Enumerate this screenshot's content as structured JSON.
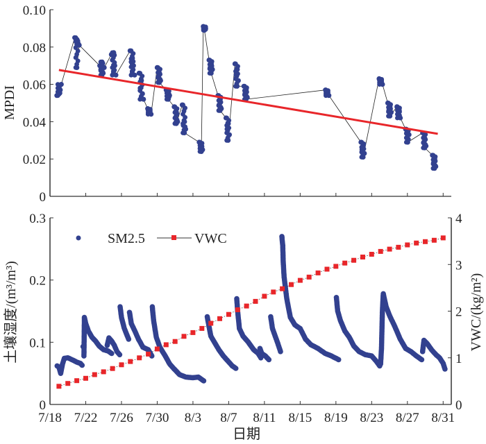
{
  "colors": {
    "points": "#32418f",
    "trend": "#e8262a",
    "vwc": "#e8262a",
    "axis": "#333333",
    "connector": "#222222"
  },
  "chart_data": [
    {
      "name": "mpdi-panel",
      "type": "scatter",
      "title": "",
      "xlabel": "",
      "ylabel": "MPDI",
      "ylim": [
        0,
        0.1
      ],
      "yticks": [
        0,
        0.02,
        0.04,
        0.06,
        0.08,
        0.1
      ],
      "ytick_labels": [
        "0",
        "0.02",
        "0.04",
        "0.06",
        "0.08",
        "0.10"
      ],
      "x_start_date": "7/18",
      "xlim_days": [
        0,
        45
      ],
      "xtick_days": [
        4,
        8,
        12,
        16,
        20,
        24,
        28,
        32,
        36,
        40,
        44
      ],
      "grid": false,
      "series": [
        {
          "name": "MPDI",
          "style": "points-connected",
          "clusters": [
            {
              "day": 1.0,
              "values": [
                0.054,
                0.055,
                0.056,
                0.057,
                0.058,
                0.06
              ]
            },
            {
              "day": 3.0,
              "values": [
                0.085,
                0.084,
                0.083,
                0.082,
                0.069,
                0.081
              ]
            },
            {
              "day": 5.8,
              "values": [
                0.07,
                0.072,
                0.068,
                0.066,
                0.065,
                0.069
              ]
            },
            {
              "day": 7.1,
              "values": [
                0.076,
                0.077,
                0.073,
                0.07,
                0.067,
                0.065
              ]
            },
            {
              "day": 9.2,
              "values": [
                0.078,
                0.074,
                0.072,
                0.07,
                0.067,
                0.065
              ]
            },
            {
              "day": 10.2,
              "values": [
                0.066,
                0.062,
                0.058,
                0.055,
                0.053,
                0.052
              ]
            },
            {
              "day": 11.1,
              "values": [
                0.047,
                0.046,
                0.045,
                0.044
              ]
            },
            {
              "day": 12.2,
              "values": [
                0.069,
                0.066,
                0.064,
                0.062,
                0.061
              ]
            },
            {
              "day": 13.2,
              "values": [
                0.057,
                0.056,
                0.055,
                0.054,
                0.052
              ]
            },
            {
              "day": 14.1,
              "values": [
                0.048,
                0.045,
                0.042,
                0.04,
                0.039
              ]
            },
            {
              "day": 15.0,
              "values": [
                0.049,
                0.04,
                0.038,
                0.036,
                0.034
              ]
            },
            {
              "day": 16.9,
              "values": [
                0.029,
                0.027,
                0.026,
                0.025,
                0.024
              ]
            },
            {
              "day": 17.3,
              "values": [
                0.091,
                0.09,
                0.089
              ]
            },
            {
              "day": 18.0,
              "values": [
                0.073,
                0.071,
                0.069,
                0.068,
                0.066
              ]
            },
            {
              "day": 19.0,
              "values": [
                0.054,
                0.052,
                0.049,
                0.047,
                0.046
              ]
            },
            {
              "day": 19.9,
              "values": [
                0.042,
                0.039,
                0.036,
                0.033,
                0.03
              ]
            },
            {
              "day": 20.9,
              "values": [
                0.071,
                0.068,
                0.065,
                0.062,
                0.059
              ]
            },
            {
              "day": 21.9,
              "values": [
                0.059,
                0.057,
                0.055,
                0.053,
                0.052
              ]
            },
            {
              "day": 31.0,
              "values": [
                0.057,
                0.056,
                0.055,
                0.054
              ]
            },
            {
              "day": 35.0,
              "values": [
                0.029,
                0.027,
                0.025,
                0.023,
                0.021
              ]
            },
            {
              "day": 37.0,
              "values": [
                0.063,
                0.062,
                0.061,
                0.06
              ]
            },
            {
              "day": 38.0,
              "values": [
                0.05,
                0.048,
                0.046,
                0.045,
                0.043
              ]
            },
            {
              "day": 39.0,
              "values": [
                0.048,
                0.046,
                0.044,
                0.042
              ]
            },
            {
              "day": 40.0,
              "values": [
                0.036,
                0.035,
                0.034,
                0.033,
                0.029
              ]
            },
            {
              "day": 41.9,
              "values": [
                0.034,
                0.031,
                0.029,
                0.027,
                0.026
              ]
            },
            {
              "day": 43.0,
              "values": [
                0.022,
                0.02,
                0.018,
                0.016,
                0.015
              ]
            }
          ]
        },
        {
          "name": "trend",
          "style": "line",
          "x_days": [
            1.0,
            43.4
          ],
          "values": [
            0.0677,
            0.0335
          ]
        }
      ]
    },
    {
      "name": "soil-moisture-panel",
      "type": "scatter",
      "title": "",
      "xlabel": "日期",
      "ylabel": "土壤湿度/(m³/m³)",
      "ylabel_right": "VWC/(kg/m²)",
      "ylim": [
        0,
        0.3
      ],
      "yticks": [
        0,
        0.1,
        0.2,
        0.3
      ],
      "ytick_labels": [
        "0",
        "0.1",
        "0.2",
        "0.3"
      ],
      "ylim_right": [
        0,
        4
      ],
      "yticks_right": [
        0,
        1,
        2,
        3,
        4
      ],
      "ytick_labels_right": [
        "0",
        "1",
        "2",
        "3",
        "4"
      ],
      "x_start_date": "7/18",
      "xlim_days": [
        0,
        45
      ],
      "xtick_days": [
        0,
        4,
        8,
        12,
        16,
        20,
        24,
        28,
        32,
        36,
        40,
        44
      ],
      "xtick_labels": [
        "7/18",
        "7/22",
        "7/26",
        "7/30",
        "8/3",
        "8/7",
        "8/11",
        "8/15",
        "8/19",
        "8/23",
        "8/27",
        "8/31"
      ],
      "grid": false,
      "legend": {
        "position": "top-left",
        "entries": [
          "SM2.5",
          "VWC"
        ]
      },
      "series": [
        {
          "name": "SM2.5",
          "axis": "left",
          "style": "dense-points",
          "segments": [
            [
              [
                0.8,
                0.062
              ],
              [
                1.0,
                0.06
              ],
              [
                1.2,
                0.05
              ],
              [
                1.4,
                0.065
              ],
              [
                1.6,
                0.074
              ],
              [
                2.0,
                0.075
              ],
              [
                2.6,
                0.071
              ],
              [
                3.0,
                0.068
              ],
              [
                3.4,
                0.066
              ],
              [
                3.6,
                0.063
              ]
            ],
            [
              [
                3.7,
                0.093
              ]
            ],
            [
              [
                3.8,
                0.078
              ],
              [
                3.85,
                0.14
              ],
              [
                4.0,
                0.13
              ],
              [
                4.3,
                0.118
              ],
              [
                4.7,
                0.108
              ],
              [
                5.1,
                0.102
              ],
              [
                5.5,
                0.094
              ],
              [
                6.0,
                0.088
              ],
              [
                6.5,
                0.086
              ],
              [
                6.9,
                0.082
              ]
            ],
            [
              [
                6.4,
                0.095
              ],
              [
                6.6,
                0.107
              ],
              [
                6.9,
                0.102
              ],
              [
                7.2,
                0.095
              ],
              [
                7.5,
                0.085
              ],
              [
                7.8,
                0.08
              ]
            ],
            [
              [
                7.85,
                0.157
              ],
              [
                8.0,
                0.14
              ],
              [
                8.3,
                0.123
              ],
              [
                8.6,
                0.112
              ],
              [
                8.8,
                0.105
              ]
            ],
            [
              [
                8.9,
                0.148
              ],
              [
                9.1,
                0.13
              ],
              [
                9.5,
                0.118
              ],
              [
                9.9,
                0.105
              ],
              [
                10.4,
                0.092
              ],
              [
                11.0,
                0.088
              ],
              [
                11.4,
                0.078
              ]
            ],
            [
              [
                11.45,
                0.157
              ],
              [
                11.6,
                0.135
              ],
              [
                11.9,
                0.108
              ],
              [
                12.3,
                0.092
              ],
              [
                12.9,
                0.078
              ],
              [
                13.4,
                0.065
              ],
              [
                13.9,
                0.057
              ],
              [
                14.5,
                0.048
              ],
              [
                15.2,
                0.044
              ],
              [
                16.0,
                0.043
              ],
              [
                16.6,
                0.044
              ],
              [
                17.2,
                0.038
              ]
            ],
            [
              [
                17.6,
                0.141
              ],
              [
                17.8,
                0.125
              ],
              [
                18.0,
                0.11
              ],
              [
                18.4,
                0.1
              ],
              [
                18.9,
                0.088
              ],
              [
                19.4,
                0.078
              ],
              [
                19.9,
                0.07
              ],
              [
                20.4,
                0.062
              ],
              [
                20.8,
                0.058
              ]
            ],
            [
              [
                20.9,
                0.17
              ],
              [
                21.0,
                0.15
              ],
              [
                21.2,
                0.122
              ],
              [
                21.6,
                0.11
              ],
              [
                22.2,
                0.1
              ],
              [
                22.8,
                0.088
              ],
              [
                23.3,
                0.082
              ],
              [
                23.6,
                0.075
              ]
            ],
            [
              [
                23.5,
                0.09
              ],
              [
                23.7,
                0.082
              ],
              [
                24.1,
                0.078
              ],
              [
                24.5,
                0.072
              ]
            ],
            [
              [
                24.7,
                0.141
              ],
              [
                24.9,
                0.122
              ],
              [
                25.2,
                0.11
              ],
              [
                25.5,
                0.098
              ],
              [
                25.8,
                0.085
              ]
            ],
            [
              [
                25.95,
                0.27
              ],
              [
                26.05,
                0.255
              ],
              [
                26.1,
                0.23
              ],
              [
                26.2,
                0.205
              ],
              [
                26.5,
                0.17
              ],
              [
                26.9,
                0.14
              ],
              [
                27.4,
                0.128
              ],
              [
                28.0,
                0.122
              ],
              [
                28.6,
                0.105
              ],
              [
                29.2,
                0.096
              ],
              [
                30.0,
                0.09
              ],
              [
                30.8,
                0.082
              ],
              [
                31.5,
                0.078
              ],
              [
                32.3,
                0.072
              ]
            ],
            [
              [
                32.05,
                0.172
              ],
              [
                32.2,
                0.15
              ],
              [
                32.5,
                0.135
              ],
              [
                33.0,
                0.118
              ],
              [
                33.5,
                0.108
              ],
              [
                34.0,
                0.094
              ],
              [
                34.6,
                0.085
              ],
              [
                35.3,
                0.08
              ],
              [
                36.0,
                0.078
              ],
              [
                36.6,
                0.068
              ],
              [
                36.9,
                0.062
              ]
            ],
            [
              [
                37.0,
                0.065
              ],
              [
                37.1,
                0.09
              ],
              [
                37.15,
                0.12
              ],
              [
                37.2,
                0.15
              ],
              [
                37.3,
                0.178
              ],
              [
                37.6,
                0.158
              ],
              [
                38.0,
                0.143
              ],
              [
                38.6,
                0.125
              ],
              [
                39.2,
                0.105
              ],
              [
                39.8,
                0.09
              ],
              [
                40.4,
                0.085
              ],
              [
                41.0,
                0.078
              ],
              [
                41.6,
                0.072
              ]
            ],
            [
              [
                41.7,
                0.085
              ],
              [
                41.85,
                0.103
              ],
              [
                42.2,
                0.098
              ],
              [
                42.7,
                0.088
              ],
              [
                43.2,
                0.08
              ],
              [
                43.6,
                0.075
              ],
              [
                44.0,
                0.066
              ],
              [
                44.2,
                0.057
              ]
            ]
          ]
        },
        {
          "name": "VWC",
          "axis": "right",
          "style": "squares-dotted-line",
          "start_day": 1,
          "step_days": 1,
          "values": [
            0.39,
            0.45,
            0.51,
            0.56,
            0.64,
            0.7,
            0.77,
            0.85,
            0.92,
            1.0,
            1.08,
            1.19,
            1.28,
            1.35,
            1.46,
            1.54,
            1.63,
            1.74,
            1.84,
            1.93,
            2.03,
            2.11,
            2.21,
            2.32,
            2.41,
            2.48,
            2.57,
            2.66,
            2.73,
            2.82,
            2.9,
            2.96,
            3.03,
            3.09,
            3.16,
            3.22,
            3.28,
            3.33,
            3.37,
            3.42,
            3.46,
            3.49,
            3.52,
            3.57
          ]
        }
      ]
    }
  ]
}
